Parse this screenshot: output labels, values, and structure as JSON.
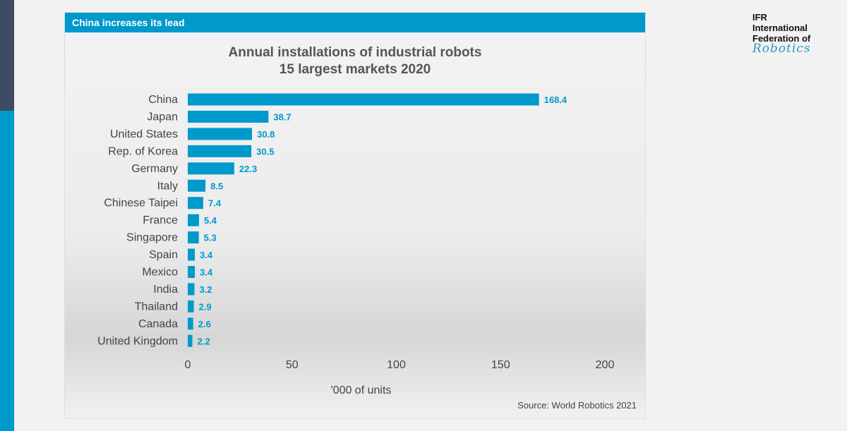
{
  "header": {
    "title": "China increases its lead"
  },
  "logo": {
    "line1": "IFR",
    "line2": "International",
    "line3": "Federation of",
    "line4": "Robotics"
  },
  "source": "Source: World Robotics 2021",
  "colors": {
    "bar": "#0099cc",
    "header": "#0099cc",
    "sidebar_dark": "#3e4b63"
  },
  "chart_data": {
    "type": "bar",
    "orientation": "horizontal",
    "title_line1": "Annual installations of industrial robots",
    "title_line2": "15 largest markets 2020",
    "xlabel": "'000 of units",
    "xlim": [
      0,
      200
    ],
    "xticks": [
      0,
      50,
      100,
      150,
      200
    ],
    "grid": false,
    "categories": [
      "China",
      "Japan",
      "United States",
      "Rep. of Korea",
      "Germany",
      "Italy",
      "Chinese Taipei",
      "France",
      "Singapore",
      "Spain",
      "Mexico",
      "India",
      "Thailand",
      "Canada",
      "United Kingdom"
    ],
    "values": [
      168.4,
      38.7,
      30.8,
      30.5,
      22.3,
      8.5,
      7.4,
      5.4,
      5.3,
      3.4,
      3.4,
      3.2,
      2.9,
      2.6,
      2.2
    ]
  }
}
